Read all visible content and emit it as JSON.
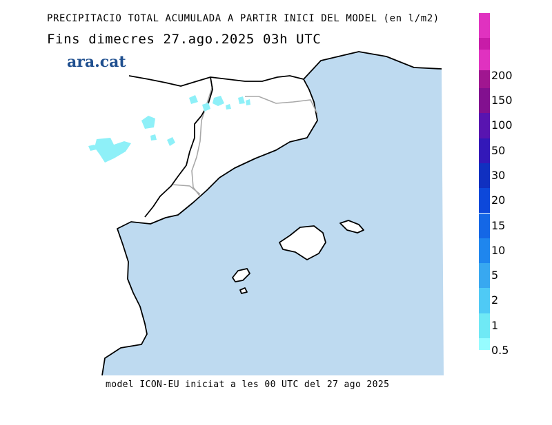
{
  "title": "PRECIPITACIO TOTAL ACUMULADA A PARTIR INICI DEL MODEL (en l/m2)",
  "subtitle": "Fins dimecres  27.ago.2025 03h UTC",
  "logo": "ara.cat",
  "footer": "model ICON-EU iniciat a les 00 UTC del 27 ago 2025",
  "colors": {
    "sea": "#bedaf0",
    "land": "#ffffff",
    "coast": "#000000",
    "border": "#a8a8a8",
    "precip": "#8ef0f8"
  },
  "legend": {
    "labels": [
      "0.5",
      "1",
      "2",
      "5",
      "10",
      "15",
      "20",
      "30",
      "50",
      "100",
      "150",
      "200"
    ],
    "colors": [
      "#96fcff",
      "#6fe9f5",
      "#4fcaf5",
      "#38a8f0",
      "#1f86ee",
      "#1467e6",
      "#0d48da",
      "#1030c0",
      "#3318b8",
      "#5814b0",
      "#82108f",
      "#a01690",
      "#c81ca8",
      "#e032c0"
    ]
  }
}
